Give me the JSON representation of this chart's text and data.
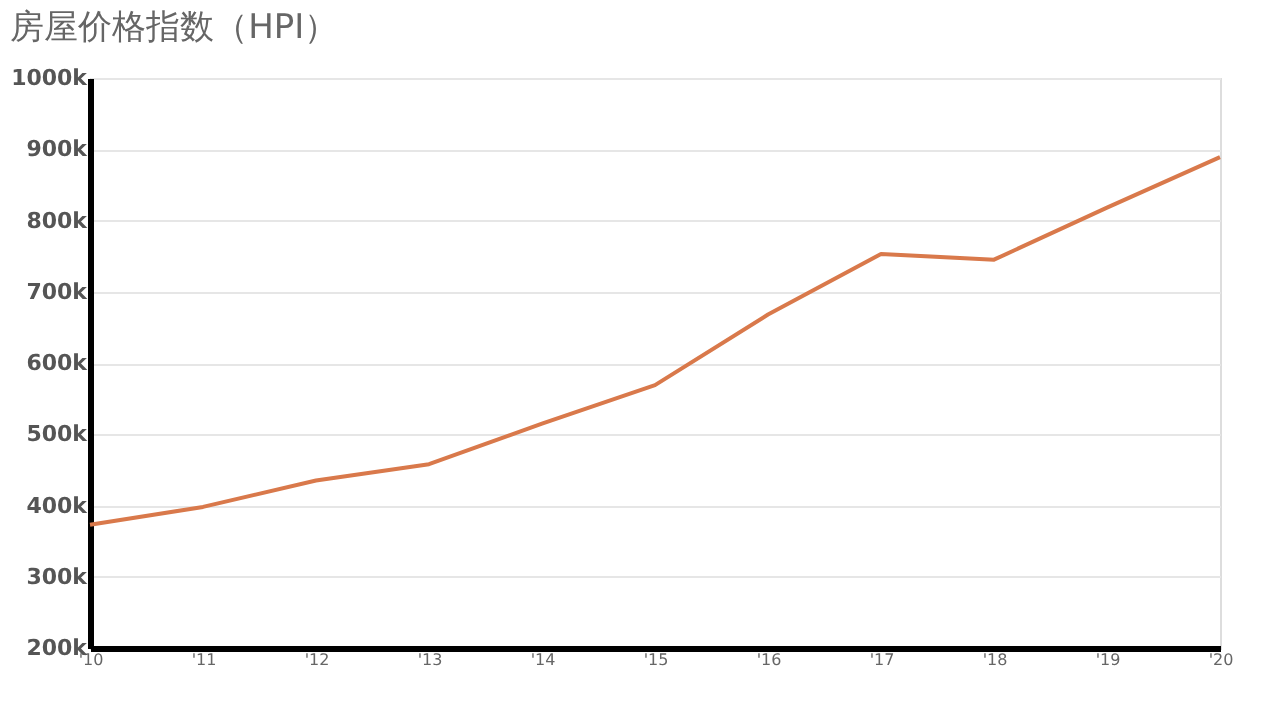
{
  "chart_data": {
    "type": "line",
    "title": "房屋价格指数（HPI）",
    "categories": [
      "'10",
      "'11",
      "'12",
      "'13",
      "'14",
      "'15",
      "'16",
      "'17",
      "'18",
      "'19",
      "'20"
    ],
    "series": [
      {
        "color": "#d9794b",
        "values": [
          373,
          398,
          435,
          458,
          515,
          569,
          668,
          753,
          745,
          818,
          889
        ]
      }
    ],
    "ylim": [
      200,
      1000
    ],
    "yticks": [
      {
        "value": 200,
        "label": "200k"
      },
      {
        "value": 300,
        "label": "300k"
      },
      {
        "value": 400,
        "label": "400k"
      },
      {
        "value": 500,
        "label": "500k"
      },
      {
        "value": 600,
        "label": "600k"
      },
      {
        "value": 700,
        "label": "700k"
      },
      {
        "value": 800,
        "label": "800k"
      },
      {
        "value": 900,
        "label": "900k"
      },
      {
        "value": 1000,
        "label": "1000k"
      }
    ],
    "grid": "y",
    "marker": "none",
    "line_style": "solid"
  }
}
